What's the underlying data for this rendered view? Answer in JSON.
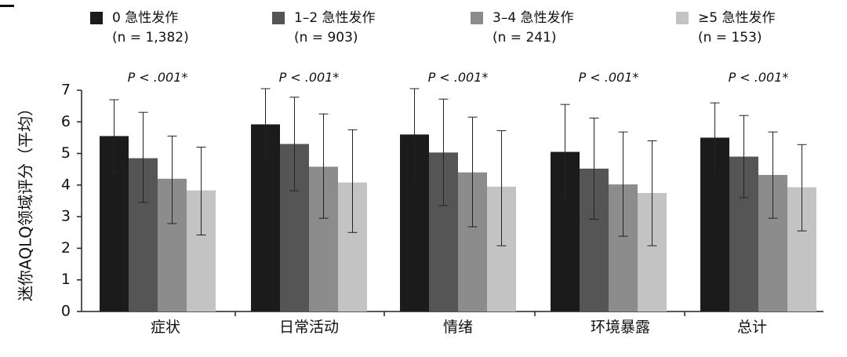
{
  "chart_data": {
    "type": "bar",
    "ylabel": "迷你AQLQ领域评分（平均）",
    "ylim": [
      0,
      7
    ],
    "yticks": [
      0,
      1,
      2,
      3,
      4,
      5,
      6,
      7
    ],
    "categories": [
      "症状",
      "日常活动",
      "情绪",
      "环境暴露",
      "总计"
    ],
    "pvalue_labels": [
      "P < .001*",
      "P < .001*",
      "P < .001*",
      "P < .001*",
      "P < .001*"
    ],
    "series": [
      {
        "name": "0  急性发作",
        "n_label": "(n = 1,382)",
        "color": "#1b1b1b",
        "values": [
          5.55,
          5.92,
          5.6,
          5.05,
          5.5
        ],
        "err_low": [
          4.4,
          4.8,
          4.1,
          3.55,
          4.35
        ],
        "err_high": [
          6.7,
          7.05,
          7.05,
          6.55,
          6.6
        ]
      },
      {
        "name": "1–2  急性发作",
        "n_label": "(n = 903)",
        "color": "#555555",
        "values": [
          4.85,
          5.3,
          5.03,
          4.52,
          4.9
        ],
        "err_low": [
          3.45,
          3.82,
          3.35,
          2.92,
          3.6
        ],
        "err_high": [
          6.3,
          6.78,
          6.72,
          6.12,
          6.2
        ]
      },
      {
        "name": "3–4  急性发作",
        "n_label": "(n = 241)",
        "color": "#8c8c8c",
        "values": [
          4.2,
          4.58,
          4.4,
          4.02,
          4.32
        ],
        "err_low": [
          2.78,
          2.95,
          2.68,
          2.38,
          2.95
        ],
        "err_high": [
          5.55,
          6.25,
          6.15,
          5.68,
          5.68
        ]
      },
      {
        "name": "≥5  急性发作",
        "n_label": "(n = 153)",
        "color": "#c3c3c3",
        "values": [
          3.83,
          4.08,
          3.95,
          3.75,
          3.93
        ],
        "err_low": [
          2.42,
          2.5,
          2.08,
          2.08,
          2.55
        ],
        "err_high": [
          5.2,
          5.75,
          5.72,
          5.4,
          5.28
        ]
      }
    ]
  }
}
